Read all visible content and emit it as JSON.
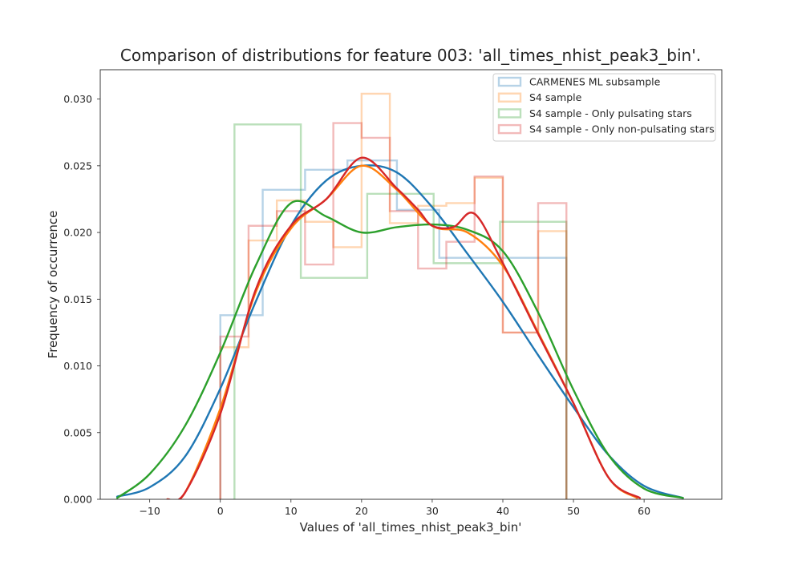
{
  "chart_data": {
    "type": "histogram_kde",
    "title": "Comparison of distributions for feature 003: 'all_times_nhist_peak3_bin'.",
    "xlabel": "Values of 'all_times_nhist_peak3_bin'",
    "ylabel": "Frequency of occurrence",
    "xlim": [
      -17,
      71
    ],
    "ylim": [
      0,
      0.0322
    ],
    "xticks": [
      -10,
      0,
      10,
      20,
      30,
      40,
      50,
      60
    ],
    "xtick_labels": [
      "−10",
      "0",
      "10",
      "20",
      "30",
      "40",
      "50",
      "60"
    ],
    "yticks": [
      0.0,
      0.005,
      0.01,
      0.015,
      0.02,
      0.025,
      0.03
    ],
    "ytick_labels": [
      "0.000",
      "0.005",
      "0.010",
      "0.015",
      "0.020",
      "0.025",
      "0.030"
    ],
    "grid": false,
    "legend_position": "top-right",
    "series": [
      {
        "name": "CARMENES ML subsample",
        "color": "#1f77b4",
        "hist_edges": [
          0,
          6,
          12,
          18,
          25,
          31,
          37,
          43,
          49
        ],
        "hist_values": [
          0.0138,
          0.0232,
          0.0247,
          0.0254,
          0.0217,
          0.0181,
          0.0181,
          0.0181
        ],
        "kde_x": [
          -14.6,
          -10,
          -5,
          0,
          5,
          10,
          15,
          20,
          25,
          30,
          35,
          40,
          45,
          50,
          55,
          60,
          65.5
        ],
        "kde_y": [
          0.0002,
          0.0009,
          0.0032,
          0.0083,
          0.0148,
          0.0205,
          0.0239,
          0.025,
          0.0245,
          0.0219,
          0.0184,
          0.0148,
          0.0108,
          0.0069,
          0.0033,
          0.001,
          0.0001
        ]
      },
      {
        "name": "S4 sample",
        "color": "#ff7f0e",
        "hist_edges": [
          0,
          4,
          8,
          12,
          16,
          20,
          24,
          28,
          32,
          36,
          40,
          45,
          49
        ],
        "hist_values": [
          0.0114,
          0.0194,
          0.0224,
          0.0208,
          0.0189,
          0.0304,
          0.0207,
          0.022,
          0.0222,
          0.0241,
          0.0125,
          0.0201
        ],
        "kde_x": [
          -7.5,
          -5,
          0,
          5,
          10,
          15,
          20,
          25,
          30,
          35,
          40,
          45,
          50,
          55,
          59
        ],
        "kde_y": [
          0.0,
          0.0005,
          0.0068,
          0.0155,
          0.0203,
          0.0225,
          0.025,
          0.0232,
          0.0205,
          0.02,
          0.0175,
          0.0125,
          0.0072,
          0.0016,
          0.0001
        ]
      },
      {
        "name": "S4 sample - Only pulsating stars",
        "color": "#2ca02c",
        "hist_edges": [
          2,
          11.4,
          20.8,
          30.2,
          39.6,
          49
        ],
        "hist_values": [
          0.0281,
          0.0166,
          0.0229,
          0.0177,
          0.0208
        ],
        "kde_x": [
          -14.6,
          -10,
          -5,
          0,
          5,
          10,
          15,
          20,
          25,
          30,
          35,
          40,
          45,
          50,
          55,
          60,
          65.5
        ],
        "kde_y": [
          0.0001,
          0.0019,
          0.0055,
          0.011,
          0.0175,
          0.0222,
          0.0212,
          0.02,
          0.0204,
          0.0206,
          0.0202,
          0.0186,
          0.014,
          0.0082,
          0.0033,
          0.0008,
          0.0001
        ]
      },
      {
        "name": "S4 sample - Only non-pulsating stars",
        "color": "#d62728",
        "hist_edges": [
          0,
          4,
          8,
          12,
          16,
          20,
          24,
          28,
          32,
          36,
          40,
          45,
          49
        ],
        "hist_values": [
          0.0122,
          0.0205,
          0.0216,
          0.0176,
          0.0282,
          0.0271,
          0.0216,
          0.0173,
          0.0193,
          0.0242,
          0.0125,
          0.0222
        ],
        "kde_x": [
          -7.5,
          -5,
          0,
          5,
          10,
          15,
          20,
          25,
          28,
          30,
          33,
          36,
          40,
          45,
          50,
          55,
          59.4
        ],
        "kde_y": [
          0.0,
          0.0005,
          0.0064,
          0.0157,
          0.0205,
          0.0225,
          0.0256,
          0.0233,
          0.0217,
          0.0205,
          0.0204,
          0.0214,
          0.0177,
          0.0124,
          0.0072,
          0.0016,
          0.0001
        ]
      }
    ]
  }
}
